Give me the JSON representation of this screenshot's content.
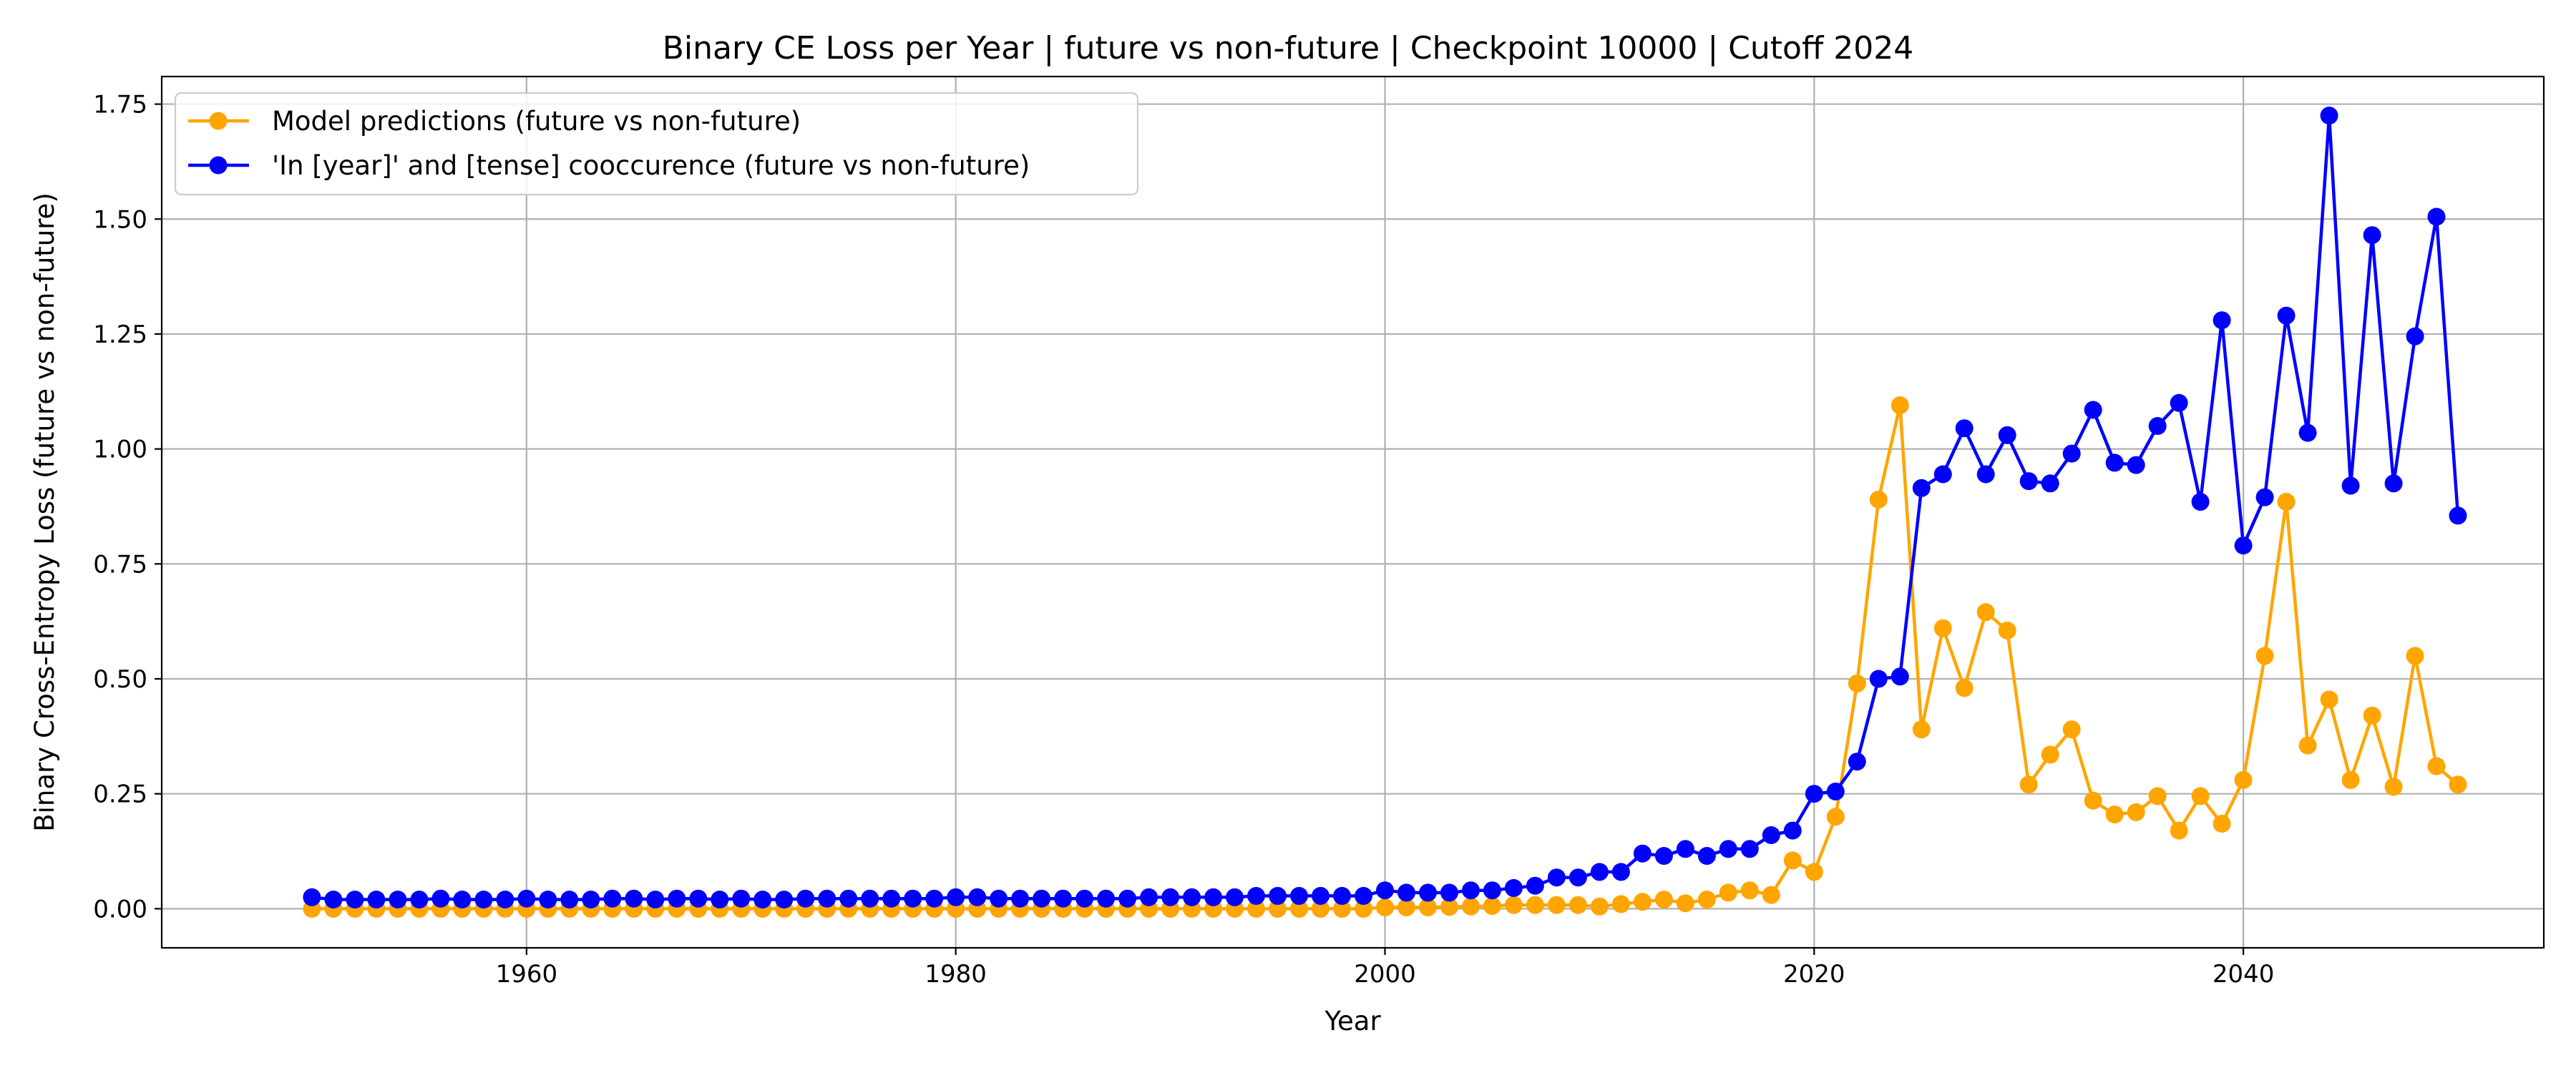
{
  "chart_data": {
    "type": "line",
    "title": "Binary CE Loss per Year | future vs non-future | Checkpoint 10000 | Cutoff 2024",
    "xlabel": "Year",
    "ylabel": "Binary Cross-Entropy Loss (future vs non-future)",
    "xlim": [
      1943,
      2054
    ],
    "ylim": [
      -0.085,
      1.81
    ],
    "xticks": [
      1960,
      1980,
      2000,
      2020,
      2040
    ],
    "yticks": [
      0.0,
      0.25,
      0.5,
      0.75,
      1.0,
      1.25,
      1.5,
      1.75
    ],
    "xtick_labels": [
      "1960",
      "1980",
      "2000",
      "2020",
      "2040"
    ],
    "ytick_labels": [
      "0.00",
      "0.25",
      "0.50",
      "0.75",
      "1.00",
      "1.25",
      "1.50",
      "1.75"
    ],
    "grid": true,
    "legend": "upper-left",
    "x_start": 1950,
    "x_end": 2050,
    "series": [
      {
        "name": "Model predictions (future vs non-future)",
        "color": "#FFA500",
        "values": [
          0.0,
          0.0,
          0.0,
          0.0,
          0.0,
          0.0,
          0.0,
          0.0,
          0.0,
          0.0,
          0.0,
          0.0,
          0.0,
          0.0,
          0.0,
          0.0,
          0.0,
          0.0,
          0.0,
          0.0,
          0.0,
          0.0,
          0.0,
          0.0,
          0.0,
          0.0,
          0.0,
          0.0,
          0.0,
          0.0,
          0.0,
          0.0,
          0.0,
          0.0,
          0.0,
          0.0,
          0.0,
          0.0,
          0.0,
          0.0,
          0.0,
          0.0,
          0.0,
          0.0,
          0.0,
          0.0,
          0.0,
          0.0,
          0.0,
          0.0,
          0.003,
          0.003,
          0.003,
          0.004,
          0.005,
          0.006,
          0.008,
          0.008,
          0.008,
          0.008,
          0.005,
          0.01,
          0.015,
          0.02,
          0.012,
          0.02,
          0.035,
          0.04,
          0.03,
          0.105,
          0.08,
          0.2,
          0.49,
          0.89,
          1.095,
          0.39,
          0.61,
          0.48,
          0.645,
          0.605,
          0.27,
          0.335,
          0.39,
          0.235,
          0.205,
          0.21,
          0.245,
          0.17,
          0.245,
          0.185,
          0.28,
          0.55,
          0.885,
          0.355,
          0.455,
          0.28,
          0.42,
          0.265,
          0.55,
          0.31,
          0.27
        ]
      },
      {
        "name": "'In [year]' and [tense] cooccurence (future vs non-future)",
        "color": "#0000FF",
        "values": [
          0.025,
          0.02,
          0.02,
          0.02,
          0.02,
          0.02,
          0.022,
          0.02,
          0.02,
          0.02,
          0.022,
          0.02,
          0.02,
          0.02,
          0.022,
          0.022,
          0.02,
          0.022,
          0.022,
          0.02,
          0.022,
          0.02,
          0.02,
          0.022,
          0.022,
          0.022,
          0.022,
          0.022,
          0.022,
          0.022,
          0.025,
          0.025,
          0.022,
          0.022,
          0.022,
          0.022,
          0.022,
          0.022,
          0.022,
          0.025,
          0.025,
          0.025,
          0.025,
          0.025,
          0.028,
          0.028,
          0.028,
          0.028,
          0.028,
          0.028,
          0.04,
          0.035,
          0.035,
          0.035,
          0.04,
          0.04,
          0.045,
          0.05,
          0.068,
          0.068,
          0.08,
          0.08,
          0.12,
          0.115,
          0.13,
          0.115,
          0.13,
          0.13,
          0.16,
          0.17,
          0.25,
          0.255,
          0.32,
          0.5,
          0.505,
          0.915,
          0.945,
          1.045,
          0.945,
          1.03,
          0.93,
          0.925,
          0.99,
          1.085,
          0.97,
          0.965,
          1.05,
          1.1,
          0.885,
          1.28,
          0.79,
          0.895,
          1.29,
          1.035,
          1.725,
          0.92,
          1.465,
          0.925,
          1.245,
          1.505,
          0.855
        ]
      }
    ]
  }
}
